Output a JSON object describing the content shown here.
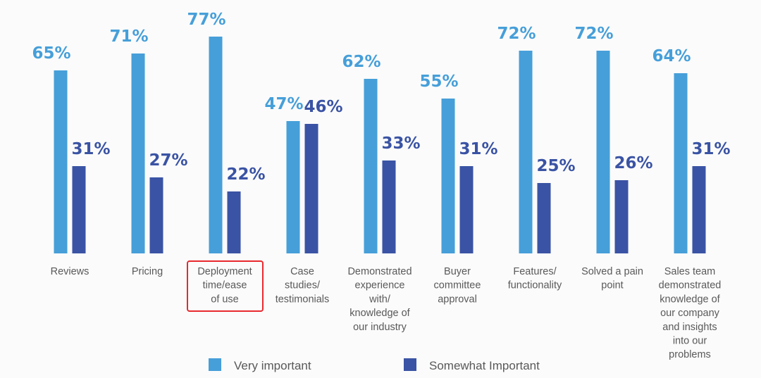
{
  "chart_data": {
    "type": "bar",
    "title": "",
    "xlabel": "",
    "ylabel": "",
    "ylim": [
      0,
      100
    ],
    "colors": {
      "very": "#469fd9",
      "somewhat": "#3a53a4",
      "highlight": "#e8292e"
    },
    "categories": [
      [
        "Reviews"
      ],
      [
        "Pricing"
      ],
      [
        "Deployment",
        "time/ease",
        "of use"
      ],
      [
        "Case",
        "studies/",
        "testimonials"
      ],
      [
        "Demonstrated",
        "experience",
        "with/",
        "knowledge of",
        "our industry"
      ],
      [
        "Buyer",
        "committee",
        "approval"
      ],
      [
        "Features/",
        "functionality"
      ],
      [
        "Solved a pain",
        "point"
      ],
      [
        "Sales team",
        "demonstrated",
        "knowledge of",
        "our company",
        "and insights",
        "into our",
        "problems"
      ]
    ],
    "series": [
      {
        "name": "Very important",
        "values": [
          65,
          71,
          77,
          47,
          62,
          55,
          72,
          72,
          64
        ]
      },
      {
        "name": "Somewhat Important",
        "values": [
          31,
          27,
          22,
          46,
          33,
          31,
          25,
          26,
          31
        ]
      }
    ],
    "value_labels": {
      "very": [
        "65%",
        "71%",
        "77%",
        "47%",
        "62%",
        "55%",
        "72%",
        "72%",
        "64%"
      ],
      "somewhat": [
        "31%",
        "27%",
        "22%",
        "46%",
        "33%",
        "31%",
        "25%",
        "26%",
        "31%"
      ]
    },
    "highlighted_category_index": 2,
    "legend": [
      {
        "label": "Very important",
        "series": 0
      },
      {
        "label": "Somewhat Important",
        "series": 1
      }
    ],
    "legend_position": "bottom"
  }
}
